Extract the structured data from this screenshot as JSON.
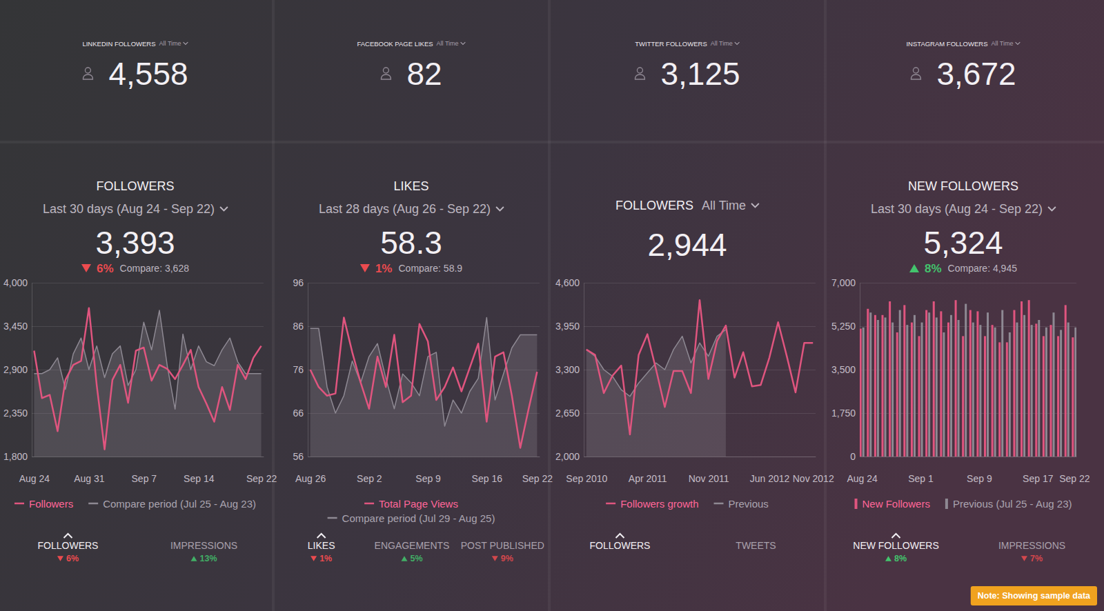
{
  "tiles": [
    {
      "label": "LINKEDIN FOLLOWERS",
      "range": "All Time",
      "value": "4,558"
    },
    {
      "label": "FACEBOOK PAGE LIKES",
      "range": "All Time",
      "value": "82"
    },
    {
      "label": "TWITTER FOLLOWERS",
      "range": "All Time",
      "value": "3,125"
    },
    {
      "label": "INSTAGRAM FOLLOWERS",
      "range": "All Time",
      "value": "3,672"
    }
  ],
  "panels": [
    {
      "title": "FOLLOWERS",
      "period": "Last 30 days (Aug 24 - Sep 22)",
      "value": "3,393",
      "change": "6%",
      "direction": "down",
      "compare": "Compare: 3,628",
      "tabs": [
        {
          "label": "FOLLOWERS",
          "change": "6%",
          "direction": "down"
        },
        {
          "label": "IMPRESSIONS",
          "change": "13%",
          "direction": "up"
        }
      ]
    },
    {
      "title": "LIKES",
      "period": "Last 28 days (Aug 26 - Sep 22)",
      "value": "58.3",
      "change": "1%",
      "direction": "down",
      "compare": "Compare: 58.9",
      "tabs": [
        {
          "label": "LIKES",
          "change": "1%",
          "direction": "down"
        },
        {
          "label": "ENGAGEMENTS",
          "change": "5%",
          "direction": "up"
        },
        {
          "label": "POST PUBLISHED",
          "change": "9%",
          "direction": "down"
        }
      ]
    },
    {
      "title": "FOLLOWERS",
      "period": "All Time",
      "value": "2,944",
      "tabs": [
        {
          "label": "FOLLOWERS"
        },
        {
          "label": "TWEETS"
        }
      ]
    },
    {
      "title": "NEW FOLLOWERS",
      "period": "Last 30 days (Aug 24 - Sep 22)",
      "value": "5,324",
      "change": "8%",
      "direction": "up",
      "compare": "Compare: 4,945",
      "tabs": [
        {
          "label": "NEW FOLLOWERS",
          "change": "8%",
          "direction": "up"
        },
        {
          "label": "IMPRESSIONS",
          "change": "7%",
          "direction": "down"
        }
      ]
    }
  ],
  "chart_data": [
    {
      "type": "line",
      "categories": [
        "Aug 24",
        null,
        null,
        null,
        null,
        null,
        null,
        "Aug 31",
        null,
        null,
        null,
        null,
        null,
        null,
        "Sep 7",
        null,
        null,
        null,
        null,
        null,
        null,
        "Sep 14",
        null,
        null,
        null,
        null,
        null,
        null,
        null,
        "Sep 22"
      ],
      "series": [
        {
          "name": "Followers",
          "color": "#e0557f",
          "values": [
            3140,
            2540,
            2580,
            2120,
            2770,
            2960,
            3010,
            3680,
            2700,
            1890,
            2770,
            2960,
            2480,
            3140,
            3180,
            2760,
            2960,
            2910,
            2780,
            2960,
            3150,
            2680,
            2470,
            2240,
            2680,
            2390,
            2960,
            2780,
            3050,
            3200
          ]
        },
        {
          "name": "Compare period (Jul 25 - Aug 23)",
          "color": "#8e8993",
          "type": "area",
          "values": [
            2850,
            2850,
            2900,
            3050,
            2650,
            3100,
            3300,
            2900,
            3200,
            2800,
            3100,
            3200,
            2700,
            2900,
            3500,
            3150,
            3650,
            2950,
            2400,
            3350,
            2900,
            3200,
            3000,
            2950,
            3150,
            3300,
            3000,
            2850,
            2850,
            2850
          ]
        }
      ],
      "ylim": [
        1800,
        4000
      ],
      "yticks": [
        {
          "value": 1800,
          "label": "1,800"
        },
        {
          "value": 2350,
          "label": "2,350"
        },
        {
          "value": 2900,
          "label": "2,900"
        },
        {
          "value": 3450,
          "label": "3,450"
        },
        {
          "value": 4000,
          "label": "4,000"
        }
      ],
      "grid": true,
      "legend": "bottom"
    },
    {
      "type": "line",
      "categories": [
        "Aug 26",
        null,
        null,
        null,
        null,
        null,
        null,
        "Sep 2",
        null,
        null,
        null,
        null,
        null,
        null,
        "Sep 9",
        null,
        null,
        null,
        null,
        null,
        null,
        "Sep 16",
        null,
        null,
        null,
        null,
        null,
        "Sep 22"
      ],
      "series": [
        {
          "name": "Total Page Views",
          "color": "#e0557f",
          "values": [
            76,
            72,
            70,
            70.5,
            88,
            80,
            73,
            67,
            79,
            72,
            84,
            68.5,
            70,
            86.5,
            82.5,
            69,
            72,
            76.5,
            71,
            76.5,
            82,
            64,
            79,
            80,
            70,
            58,
            67,
            75.5
          ]
        },
        {
          "name": "Compare period (Jul 29 - Aug 25)",
          "color": "#8e8993",
          "type": "area",
          "values": [
            85.5,
            85.5,
            72,
            66,
            70,
            78,
            73,
            79,
            82,
            74,
            67,
            75,
            73,
            70,
            79,
            80,
            63,
            69,
            66,
            71,
            74,
            88,
            69,
            75,
            81,
            84,
            84,
            84
          ]
        }
      ],
      "ylim": [
        56,
        96
      ],
      "yticks": [
        56,
        66,
        76,
        86,
        96
      ],
      "grid": true,
      "legend": "bottom"
    },
    {
      "type": "line",
      "categories": [
        "Sep 2010",
        null,
        null,
        null,
        null,
        null,
        null,
        "Apr 2011",
        null,
        null,
        null,
        null,
        null,
        null,
        "Nov 2011",
        null,
        null,
        null,
        null,
        null,
        null,
        "Jun 2012",
        null,
        null,
        null,
        null,
        "Nov 2012"
      ],
      "series": [
        {
          "name": "Followers growth",
          "color": "#e0557f",
          "values": [
            3600,
            3520,
            2950,
            3210,
            3360,
            2330,
            3520,
            3830,
            3300,
            2740,
            3280,
            3280,
            2950,
            4340,
            3160,
            3730,
            3960,
            3180,
            3560,
            3050,
            3070,
            3480,
            4010,
            3500,
            2960,
            3700,
            3700
          ]
        },
        {
          "name": "Previous",
          "color": "#8e8993",
          "type": "area",
          "values": [
            3600,
            3500,
            3300,
            3200,
            3000,
            2900,
            3100,
            3250,
            3400,
            3300,
            3600,
            3800,
            3400,
            3700,
            3500,
            3800,
            3900,
            null,
            null,
            null,
            null,
            null,
            null,
            null,
            null,
            null,
            null
          ]
        }
      ],
      "ylim": [
        2000,
        4600
      ],
      "yticks": [
        {
          "value": 2000,
          "label": "2,000"
        },
        {
          "value": 2650,
          "label": "2,650"
        },
        {
          "value": 3300,
          "label": "3,300"
        },
        {
          "value": 3950,
          "label": "3,950"
        },
        {
          "value": 4600,
          "label": "4,600"
        }
      ],
      "grid": true,
      "legend": "bottom"
    },
    {
      "type": "bar",
      "categories": [
        "Aug 24",
        null,
        null,
        null,
        null,
        null,
        null,
        null,
        "Sep 1",
        null,
        null,
        null,
        null,
        null,
        null,
        null,
        "Sep 9",
        null,
        null,
        null,
        null,
        null,
        null,
        null,
        "Sep 17",
        null,
        null,
        null,
        null,
        "Sep 22"
      ],
      "series": [
        {
          "name": "New Followers",
          "color": "#e0557f",
          "values": [
            5150,
            5950,
            5700,
            5700,
            6250,
            5000,
            6100,
            5400,
            4850,
            5900,
            6250,
            5850,
            5400,
            6300,
            4850,
            5900,
            5850,
            4850,
            5300,
            4600,
            4600,
            5900,
            6250,
            6300,
            5350,
            4850,
            5300,
            4850,
            6100,
            4800
          ]
        },
        {
          "name": "Previous (Jul 25 - Aug 23)",
          "color": "#8e8993",
          "values": [
            5200,
            5800,
            5500,
            5600,
            5400,
            5900,
            5300,
            5700,
            5400,
            5800,
            5600,
            5000,
            5700,
            5500,
            6150,
            5400,
            5300,
            5800,
            5200,
            5900,
            5000,
            5400,
            5700,
            5300,
            5500,
            5200,
            5800,
            5100,
            5400,
            5200
          ]
        }
      ],
      "ylim": [
        0,
        7000
      ],
      "yticks": [
        0,
        {
          "value": 1750,
          "label": "1,750"
        },
        {
          "value": 3500,
          "label": "3,500"
        },
        {
          "value": 5250,
          "label": "5,250"
        },
        {
          "value": 7000,
          "label": "7,000"
        }
      ],
      "grid": true,
      "legend": "bottom"
    }
  ],
  "note": "Note: Showing sample data"
}
